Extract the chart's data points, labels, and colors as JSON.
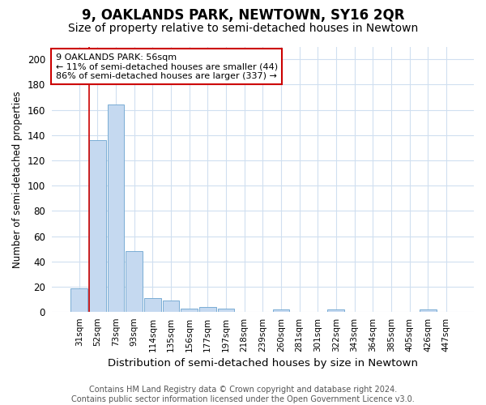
{
  "title": "9, OAKLANDS PARK, NEWTOWN, SY16 2QR",
  "subtitle": "Size of property relative to semi-detached houses in Newtown",
  "xlabel": "Distribution of semi-detached houses by size in Newtown",
  "ylabel": "Number of semi-detached properties",
  "categories": [
    "31sqm",
    "52sqm",
    "73sqm",
    "93sqm",
    "114sqm",
    "135sqm",
    "156sqm",
    "177sqm",
    "197sqm",
    "218sqm",
    "239sqm",
    "260sqm",
    "281sqm",
    "301sqm",
    "322sqm",
    "343sqm",
    "364sqm",
    "385sqm",
    "405sqm",
    "426sqm",
    "447sqm"
  ],
  "values": [
    19,
    136,
    164,
    48,
    11,
    9,
    3,
    4,
    3,
    0,
    0,
    2,
    0,
    0,
    2,
    0,
    0,
    0,
    0,
    2,
    0
  ],
  "bar_color": "#c5d9f0",
  "bar_edge_color": "#7aadd4",
  "highlight_line_color": "#cc0000",
  "highlight_bar_index": 1,
  "annotation_title": "9 OAKLANDS PARK: 56sqm",
  "annotation_line1": "← 11% of semi-detached houses are smaller (44)",
  "annotation_line2": "86% of semi-detached houses are larger (337) →",
  "annotation_box_color": "#ffffff",
  "annotation_box_edge_color": "#cc0000",
  "ylim": [
    0,
    210
  ],
  "yticks": [
    0,
    20,
    40,
    60,
    80,
    100,
    120,
    140,
    160,
    180,
    200
  ],
  "footer_line1": "Contains HM Land Registry data © Crown copyright and database right 2024.",
  "footer_line2": "Contains public sector information licensed under the Open Government Licence v3.0.",
  "bg_color": "#ffffff",
  "grid_color": "#d0dff0",
  "title_fontsize": 12,
  "subtitle_fontsize": 10,
  "xlabel_fontsize": 9.5,
  "ylabel_fontsize": 8.5,
  "annotation_fontsize": 8,
  "footer_fontsize": 7
}
